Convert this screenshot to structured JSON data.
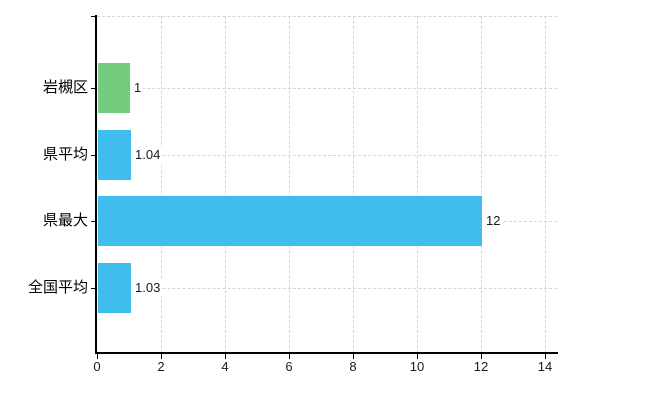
{
  "chart_data": {
    "type": "bar",
    "orientation": "horizontal",
    "title": "",
    "xlabel": "",
    "ylabel": "",
    "categories": [
      "岩槻区",
      "県平均",
      "県最大",
      "全国平均"
    ],
    "values": [
      1,
      1.04,
      12,
      1.03
    ],
    "value_labels": [
      "1",
      "1.04",
      "12",
      "1.03"
    ],
    "bar_colors": [
      "#74CC7E",
      "#3FBEEE",
      "#3FBEEE",
      "#3FBEEE"
    ],
    "x_ticks": [
      0,
      2,
      4,
      6,
      8,
      10,
      12,
      14
    ],
    "x_tick_labels": [
      "0",
      "2",
      "4",
      "6",
      "8",
      "10",
      "12",
      "14"
    ],
    "xlim": [
      0,
      14.4
    ],
    "grid": true,
    "legend_position": "none",
    "colors": {
      "background": "#ffffff",
      "grid": "#d6d6d6",
      "axis": "#000000",
      "text": "#1a1a1a",
      "green_bar": "#74CC7E",
      "blue_bar": "#3FBEEE"
    }
  }
}
